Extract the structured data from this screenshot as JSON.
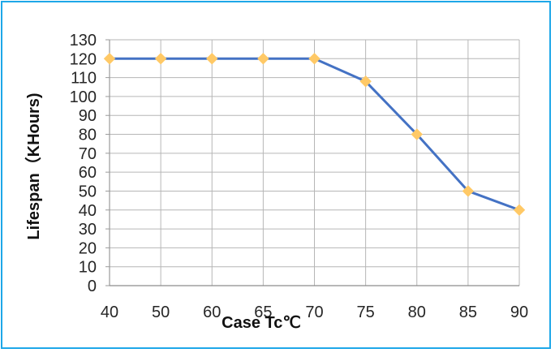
{
  "chart_data": {
    "type": "line",
    "title": "",
    "xlabel": "Case Tc℃",
    "ylabel": "Lifespan（KHours)",
    "x": [
      40,
      50,
      60,
      65,
      70,
      75,
      80,
      85,
      90
    ],
    "x_tick_labels": [
      "40",
      "50",
      "60",
      "65",
      "70",
      "75",
      "80",
      "85",
      "90"
    ],
    "series": [
      {
        "values": [
          120,
          120,
          120,
          120,
          120,
          108,
          80,
          50,
          40
        ],
        "color": "#4472c4",
        "marker": "diamond",
        "marker_color": "#ffc966"
      }
    ],
    "ylim": [
      0,
      130
    ],
    "y_ticks": [
      0,
      10,
      20,
      30,
      40,
      50,
      60,
      70,
      80,
      90,
      100,
      110,
      120,
      130
    ],
    "grid": true,
    "x_axis": "categorical"
  },
  "colors": {
    "border": "#1ea7e8",
    "line": "#4472c4",
    "marker": "#ffc966",
    "grid": "#b6b6b6"
  }
}
